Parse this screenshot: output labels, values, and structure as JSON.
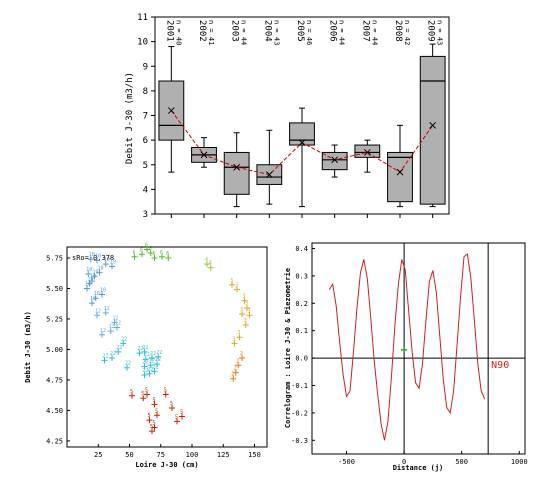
{
  "chart_data": [
    {
      "type": "box",
      "ylabel": "Debit J-30 (m3/h)",
      "ylim": [
        3,
        11
      ],
      "yticks": [
        3,
        4,
        5,
        6,
        7,
        8,
        9,
        10,
        11
      ],
      "categories": [
        "2001",
        "2002",
        "2003",
        "2004",
        "2005",
        "2006",
        "2007",
        "2008",
        "2009"
      ],
      "n_labels": [
        "n = 40",
        "n = 41",
        "n = 44",
        "n = 43",
        "n = 46",
        "n = 44",
        "n = 44",
        "n = 42",
        "n = 43"
      ],
      "boxes": [
        {
          "whislo": 4.7,
          "q1": 6.0,
          "med": 6.6,
          "q3": 8.4,
          "whishi": 9.8,
          "mean": 7.2
        },
        {
          "whislo": 4.9,
          "q1": 5.1,
          "med": 5.4,
          "q3": 5.7,
          "whishi": 6.1,
          "mean": 5.4
        },
        {
          "whislo": 3.3,
          "q1": 3.8,
          "med": 4.9,
          "q3": 5.5,
          "whishi": 6.3,
          "mean": 4.9
        },
        {
          "whislo": 3.4,
          "q1": 4.2,
          "med": 4.5,
          "q3": 5.0,
          "whishi": 6.4,
          "mean": 4.6
        },
        {
          "whislo": 3.3,
          "q1": 5.8,
          "med": 6.0,
          "q3": 6.7,
          "whishi": 7.3,
          "mean": 5.9
        },
        {
          "whislo": 4.5,
          "q1": 4.8,
          "med": 5.2,
          "q3": 5.5,
          "whishi": 5.8,
          "mean": 5.2
        },
        {
          "whislo": 4.7,
          "q1": 5.3,
          "med": 5.5,
          "q3": 5.8,
          "whishi": 6.0,
          "mean": 5.5
        },
        {
          "whislo": 3.3,
          "q1": 3.5,
          "med": 5.3,
          "q3": 5.5,
          "whishi": 6.6,
          "mean": 4.7
        },
        {
          "whislo": 3.3,
          "q1": 3.4,
          "med": 8.4,
          "q3": 9.4,
          "whishi": 9.9,
          "mean": 6.6
        }
      ],
      "mean_line_color": "#cc0000",
      "box_color": "#b0b0b0"
    },
    {
      "type": "scatter",
      "xlabel": "Loire J-30 (cm)",
      "ylabel": "Debit J-30 (m3/h)",
      "annotation": "sRo=-0.378",
      "xlim": [
        0,
        160
      ],
      "ylim": [
        4.2,
        3.84
      ],
      "xticks": [
        25,
        50,
        75,
        100,
        125,
        150
      ],
      "yticks": [
        4.25,
        4.5,
        4.75,
        5.0,
        5.25,
        5.5,
        5.75
      ],
      "ytick_labels": [
        "4.25",
        "4.50",
        "4.75",
        "5.00",
        "5.25",
        "5.50",
        "5.75"
      ],
      "points": [
        {
          "x": 68,
          "y": 4.33,
          "label": "5",
          "color": "#cc2200"
        },
        {
          "x": 70,
          "y": 4.36,
          "label": "5",
          "color": "#cc2200"
        },
        {
          "x": 66,
          "y": 4.42,
          "label": "5",
          "color": "#cc2200"
        },
        {
          "x": 72,
          "y": 4.46,
          "label": "5",
          "color": "#cc2200"
        },
        {
          "x": 88,
          "y": 4.41,
          "label": "5",
          "color": "#cc2200"
        },
        {
          "x": 92,
          "y": 4.45,
          "label": "5",
          "color": "#cc2200"
        },
        {
          "x": 84,
          "y": 4.52,
          "label": "5",
          "color": "#cc2200"
        },
        {
          "x": 79,
          "y": 4.63,
          "label": "5",
          "color": "#cc2200"
        },
        {
          "x": 61,
          "y": 4.6,
          "label": "5",
          "color": "#cc2200"
        },
        {
          "x": 64,
          "y": 4.63,
          "label": "5",
          "color": "#cc2200"
        },
        {
          "x": 70,
          "y": 4.55,
          "label": "5",
          "color": "#cc2200"
        },
        {
          "x": 52,
          "y": 4.62,
          "label": "5",
          "color": "#cc2200"
        },
        {
          "x": 62,
          "y": 4.79,
          "label": "22",
          "color": "#33bbdd"
        },
        {
          "x": 66,
          "y": 4.8,
          "label": "22",
          "color": "#33bbdd"
        },
        {
          "x": 70,
          "y": 4.82,
          "label": "22",
          "color": "#33bbdd"
        },
        {
          "x": 62,
          "y": 4.86,
          "label": "22",
          "color": "#33bbdd"
        },
        {
          "x": 67,
          "y": 4.87,
          "label": "22",
          "color": "#33bbdd"
        },
        {
          "x": 72,
          "y": 4.88,
          "label": "22",
          "color": "#33bbdd"
        },
        {
          "x": 63,
          "y": 4.92,
          "label": "22",
          "color": "#33bbdd"
        },
        {
          "x": 68,
          "y": 4.93,
          "label": "22",
          "color": "#33bbdd"
        },
        {
          "x": 73,
          "y": 4.94,
          "label": "22",
          "color": "#33bbdd"
        },
        {
          "x": 58,
          "y": 4.97,
          "label": "22",
          "color": "#33bbdd"
        },
        {
          "x": 62,
          "y": 4.98,
          "label": "22",
          "color": "#33bbdd"
        },
        {
          "x": 41,
          "y": 4.98,
          "label": "22",
          "color": "#33bbdd"
        },
        {
          "x": 45,
          "y": 5.05,
          "label": "22",
          "color": "#33bbdd"
        },
        {
          "x": 30,
          "y": 4.91,
          "label": "22",
          "color": "#33bbdd"
        },
        {
          "x": 36,
          "y": 4.93,
          "label": "22",
          "color": "#33bbdd"
        },
        {
          "x": 48,
          "y": 4.85,
          "label": "22",
          "color": "#33bbdd"
        },
        {
          "x": 28,
          "y": 5.12,
          "label": "12",
          "color": "#66aadd"
        },
        {
          "x": 35,
          "y": 5.15,
          "label": "12",
          "color": "#66aadd"
        },
        {
          "x": 40,
          "y": 5.18,
          "label": "12",
          "color": "#66aadd"
        },
        {
          "x": 38,
          "y": 5.22,
          "label": "12",
          "color": "#66aadd"
        },
        {
          "x": 24,
          "y": 5.28,
          "label": "12",
          "color": "#66aadd"
        },
        {
          "x": 31,
          "y": 5.3,
          "label": "12",
          "color": "#66aadd"
        },
        {
          "x": 20,
          "y": 5.38,
          "label": "10",
          "color": "#5599dd"
        },
        {
          "x": 23,
          "y": 5.42,
          "label": "10",
          "color": "#5599dd"
        },
        {
          "x": 28,
          "y": 5.45,
          "label": "10",
          "color": "#5599dd"
        },
        {
          "x": 16,
          "y": 5.5,
          "label": "10",
          "color": "#5599dd"
        },
        {
          "x": 18,
          "y": 5.54,
          "label": "10",
          "color": "#5599dd"
        },
        {
          "x": 20,
          "y": 5.56,
          "label": "10",
          "color": "#5599dd"
        },
        {
          "x": 22,
          "y": 5.6,
          "label": "10",
          "color": "#5599dd"
        },
        {
          "x": 26,
          "y": 5.63,
          "label": "10",
          "color": "#5599dd"
        },
        {
          "x": 17,
          "y": 5.62,
          "label": "10",
          "color": "#5599dd"
        },
        {
          "x": 19,
          "y": 5.74,
          "label": "10",
          "color": "#5599dd"
        },
        {
          "x": 24,
          "y": 5.73,
          "label": "10",
          "color": "#5599dd"
        },
        {
          "x": 31,
          "y": 5.7,
          "label": "10",
          "color": "#5599dd"
        },
        {
          "x": 36,
          "y": 5.68,
          "label": "10",
          "color": "#5599dd"
        },
        {
          "x": 54,
          "y": 5.76,
          "label": "6",
          "color": "#55bb33"
        },
        {
          "x": 60,
          "y": 5.78,
          "label": "6",
          "color": "#55bb33"
        },
        {
          "x": 64,
          "y": 5.82,
          "label": "6",
          "color": "#55bb33"
        },
        {
          "x": 67,
          "y": 5.79,
          "label": "6",
          "color": "#55bb33"
        },
        {
          "x": 70,
          "y": 5.75,
          "label": "6",
          "color": "#55bb33"
        },
        {
          "x": 76,
          "y": 5.76,
          "label": "6",
          "color": "#55bb33"
        },
        {
          "x": 81,
          "y": 5.75,
          "label": "6",
          "color": "#55bb33"
        },
        {
          "x": 112,
          "y": 5.7,
          "label": "4",
          "color": "#99cc33"
        },
        {
          "x": 115,
          "y": 5.67,
          "label": "4",
          "color": "#99cc33"
        },
        {
          "x": 132,
          "y": 5.53,
          "label": "3",
          "color": "#ddaa22"
        },
        {
          "x": 136,
          "y": 5.49,
          "label": "3",
          "color": "#ddaa22"
        },
        {
          "x": 142,
          "y": 5.4,
          "label": "3",
          "color": "#ddaa22"
        },
        {
          "x": 144,
          "y": 5.34,
          "label": "3",
          "color": "#ddaa22"
        },
        {
          "x": 140,
          "y": 5.29,
          "label": "3",
          "color": "#ddaa22"
        },
        {
          "x": 146,
          "y": 5.28,
          "label": "3",
          "color": "#ddaa22"
        },
        {
          "x": 143,
          "y": 5.2,
          "label": "3",
          "color": "#ddaa22"
        },
        {
          "x": 138,
          "y": 5.1,
          "label": "3",
          "color": "#ddaa22"
        },
        {
          "x": 134,
          "y": 5.05,
          "label": "3",
          "color": "#ddaa22"
        },
        {
          "x": 140,
          "y": 4.93,
          "label": "2",
          "color": "#ee7711"
        },
        {
          "x": 137,
          "y": 4.87,
          "label": "2",
          "color": "#ee7711"
        },
        {
          "x": 135,
          "y": 4.81,
          "label": "2",
          "color": "#ee7711"
        },
        {
          "x": 133,
          "y": 4.76,
          "label": "2",
          "color": "#ee7711"
        }
      ]
    },
    {
      "type": "line",
      "xlabel": "Distance (j)",
      "ylabel": "Correlogram : Loire J-30 & Piezometrie",
      "xlim": [
        -800,
        1050
      ],
      "ylim": [
        -0.35,
        0.42
      ],
      "xticks": [
        -500,
        0,
        500,
        1000
      ],
      "yticks": [
        -0.3,
        -0.2,
        -0.1,
        0.0,
        0.1,
        0.2,
        0.3,
        0.4
      ],
      "ytick_labels": [
        "-0.3",
        "-0.2",
        "-0.1",
        "0.0",
        "0.1",
        "0.2",
        "0.3",
        "0.4"
      ],
      "vlines": [
        0,
        730
      ],
      "hline": 0,
      "marker": {
        "x": 0,
        "y": 0.03
      },
      "marker_color": "#22aa22",
      "line_color": "#cc2222",
      "annotation": "N90",
      "series": [
        {
          "x": [
            -650,
            -620,
            -590,
            -560,
            -530,
            -500,
            -470,
            -440,
            -410,
            -380,
            -350,
            -320,
            -290,
            -260,
            -230,
            -200,
            -170,
            -140,
            -110,
            -80,
            -50,
            -20,
            10,
            40,
            70,
            100,
            130,
            160,
            190,
            220,
            250,
            280,
            310,
            340,
            370,
            400,
            430,
            460,
            490,
            520,
            550,
            580,
            610,
            640,
            670,
            700
          ],
          "y": [
            0.25,
            0.27,
            0.19,
            0.06,
            -0.06,
            -0.14,
            -0.12,
            0.02,
            0.18,
            0.31,
            0.36,
            0.29,
            0.15,
            -0.01,
            -0.13,
            -0.24,
            -0.3,
            -0.23,
            -0.07,
            0.12,
            0.27,
            0.36,
            0.32,
            0.17,
            0.02,
            -0.09,
            -0.11,
            -0.02,
            0.14,
            0.28,
            0.32,
            0.24,
            0.08,
            -0.08,
            -0.18,
            -0.2,
            -0.12,
            0.05,
            0.22,
            0.37,
            0.38,
            0.29,
            0.14,
            -0.02,
            -0.12,
            -0.15
          ]
        }
      ]
    }
  ]
}
